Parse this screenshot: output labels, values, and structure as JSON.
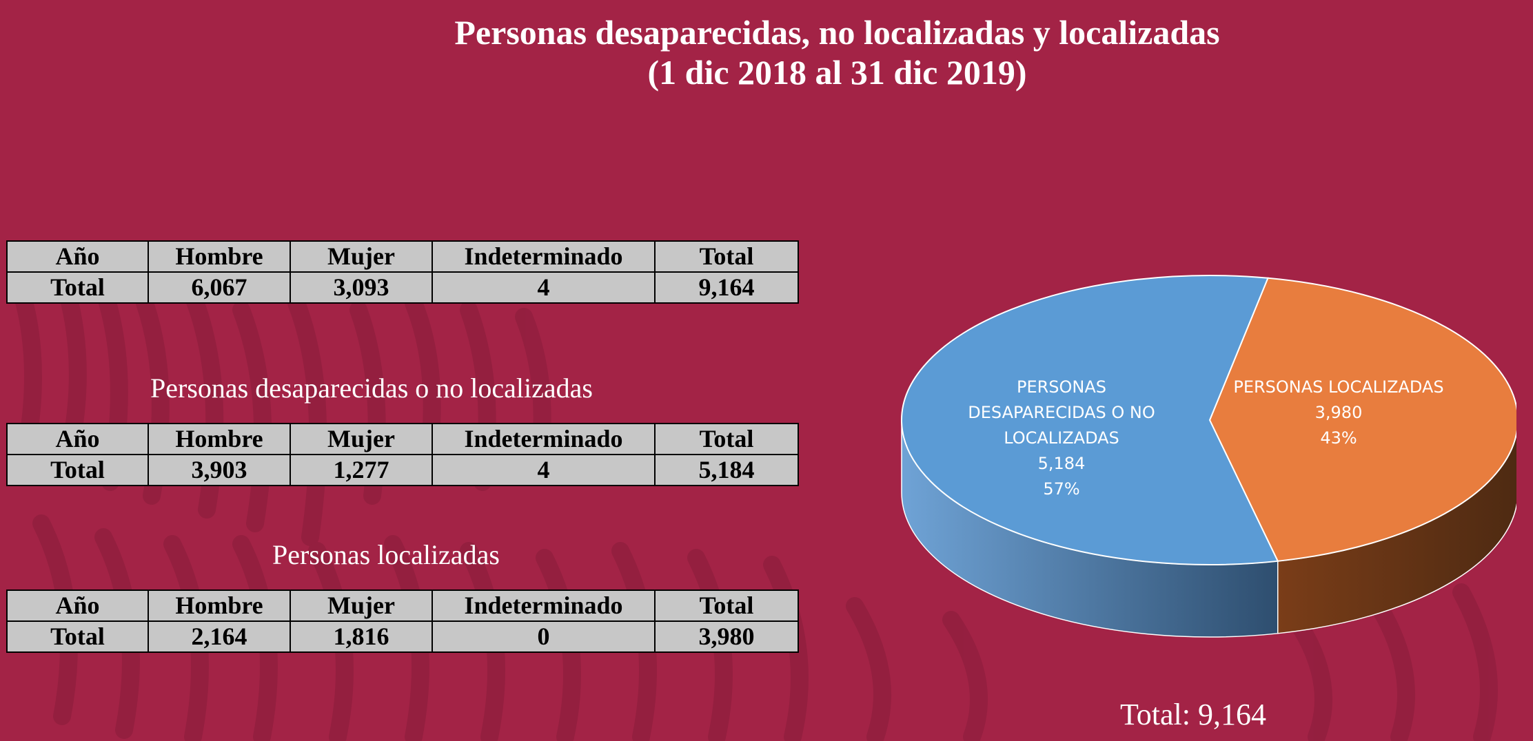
{
  "title": {
    "line1": "Personas desaparecidas, no localizadas y localizadas",
    "line2": "(1 dic 2018 al 31 dic 2019)"
  },
  "tables": [
    {
      "caption": "",
      "headers": [
        "Año",
        "Hombre",
        "Mujer",
        "Indeterminado",
        "Total"
      ],
      "row": [
        "Total",
        "6,067",
        "3,093",
        "4",
        "9,164"
      ]
    },
    {
      "caption": "Personas desaparecidas o no localizadas",
      "headers": [
        "Año",
        "Hombre",
        "Mujer",
        "Indeterminado",
        "Total"
      ],
      "row": [
        "Total",
        "3,903",
        "1,277",
        "4",
        "5,184"
      ]
    },
    {
      "caption": "Personas localizadas",
      "headers": [
        "Año",
        "Hombre",
        "Mujer",
        "Indeterminado",
        "Total"
      ],
      "row": [
        "Total",
        "2,164",
        "1,816",
        "0",
        "3,980"
      ]
    }
  ],
  "chart_data": {
    "type": "pie",
    "slices": [
      {
        "label_lines": [
          "PERSONAS",
          "DESAPARECIDAS O NO",
          "LOCALIZADAS"
        ],
        "value": 5184,
        "value_label": "5,184",
        "percent_label": "57%",
        "color": "#5B9BD5",
        "side_color": "#3E6E99"
      },
      {
        "label_lines": [
          "PERSONAS LOCALIZADAS"
        ],
        "value": 3980,
        "value_label": "3,980",
        "percent_label": "43%",
        "color": "#E87D3E",
        "side_color": "#5E3216"
      }
    ],
    "total_label": "Total: 9,164"
  },
  "colors": {
    "background": "#A32346",
    "table_fill": "#C7C7C7"
  }
}
